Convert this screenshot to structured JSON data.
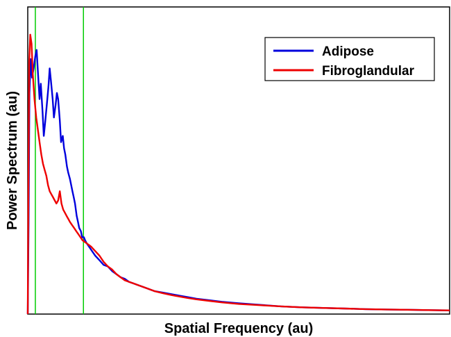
{
  "chart_data": {
    "type": "line",
    "title": "",
    "xlabel": "Spatial Frequency (au)",
    "ylabel": "Power Spectrum (au)",
    "xlim": [
      0,
      100
    ],
    "ylim": [
      0,
      100
    ],
    "x_ticks_shown": false,
    "y_ticks_shown": false,
    "grid": false,
    "legend": {
      "position": "top-right"
    },
    "vertical_lines": [
      {
        "x": 1.8,
        "color": "#00cc00"
      },
      {
        "x": 13.2,
        "color": "#00cc00"
      }
    ],
    "series": [
      {
        "name": "Adipose",
        "color": "#0000dd",
        "points": [
          [
            0.0,
            0
          ],
          [
            0.2,
            30
          ],
          [
            0.4,
            72
          ],
          [
            0.7,
            83
          ],
          [
            1.0,
            77
          ],
          [
            1.4,
            80
          ],
          [
            1.8,
            84
          ],
          [
            2.1,
            86
          ],
          [
            2.4,
            79
          ],
          [
            2.8,
            70
          ],
          [
            3.1,
            75
          ],
          [
            3.5,
            66
          ],
          [
            3.8,
            58
          ],
          [
            4.1,
            62
          ],
          [
            4.5,
            68
          ],
          [
            4.9,
            74
          ],
          [
            5.2,
            80
          ],
          [
            5.5,
            76
          ],
          [
            5.9,
            70
          ],
          [
            6.2,
            64
          ],
          [
            6.6,
            68
          ],
          [
            6.9,
            72
          ],
          [
            7.2,
            70
          ],
          [
            7.6,
            63
          ],
          [
            7.9,
            56
          ],
          [
            8.3,
            58
          ],
          [
            8.6,
            54
          ],
          [
            8.9,
            52
          ],
          [
            9.3,
            48
          ],
          [
            9.6,
            46
          ],
          [
            10.0,
            44
          ],
          [
            10.3,
            42
          ],
          [
            10.6,
            40
          ],
          [
            10.9,
            38
          ],
          [
            11.2,
            36
          ],
          [
            11.6,
            32
          ],
          [
            11.9,
            30
          ],
          [
            12.2,
            28
          ],
          [
            12.6,
            27
          ],
          [
            12.9,
            25
          ],
          [
            13.3,
            25
          ],
          [
            13.6,
            24
          ],
          [
            14.0,
            23
          ],
          [
            14.5,
            22
          ],
          [
            15.0,
            21
          ],
          [
            15.5,
            20
          ],
          [
            16.0,
            19
          ],
          [
            17.0,
            17.5
          ],
          [
            18.0,
            16
          ],
          [
            19.0,
            15.5
          ],
          [
            20.0,
            14
          ],
          [
            21.0,
            13
          ],
          [
            22.0,
            12
          ],
          [
            23.0,
            11.5
          ],
          [
            24.0,
            10.5
          ],
          [
            25.0,
            10
          ],
          [
            26.0,
            9.5
          ],
          [
            28.0,
            8.5
          ],
          [
            30.0,
            7.5
          ],
          [
            32.0,
            7
          ],
          [
            34.0,
            6.5
          ],
          [
            36.0,
            6
          ],
          [
            38.0,
            5.5
          ],
          [
            40.0,
            5
          ],
          [
            43.0,
            4.5
          ],
          [
            46.0,
            4
          ],
          [
            50.0,
            3.5
          ],
          [
            55.0,
            3
          ],
          [
            60.0,
            2.5
          ],
          [
            65.0,
            2.2
          ],
          [
            70.0,
            2
          ],
          [
            75.0,
            1.8
          ],
          [
            80.0,
            1.6
          ],
          [
            85.0,
            1.5
          ],
          [
            90.0,
            1.4
          ],
          [
            95.0,
            1.3
          ],
          [
            100.0,
            1.2
          ]
        ]
      },
      {
        "name": "Fibroglandular",
        "color": "#ee0000",
        "points": [
          [
            0.0,
            0
          ],
          [
            0.15,
            40
          ],
          [
            0.35,
            82
          ],
          [
            0.6,
            91
          ],
          [
            0.9,
            88
          ],
          [
            1.2,
            78
          ],
          [
            1.6,
            70
          ],
          [
            2.0,
            64
          ],
          [
            2.4,
            60
          ],
          [
            2.8,
            56
          ],
          [
            3.2,
            52
          ],
          [
            3.6,
            49
          ],
          [
            4.0,
            47
          ],
          [
            4.4,
            45
          ],
          [
            4.8,
            42
          ],
          [
            5.2,
            40
          ],
          [
            5.6,
            39
          ],
          [
            6.0,
            38
          ],
          [
            6.4,
            37
          ],
          [
            6.8,
            36
          ],
          [
            7.2,
            37
          ],
          [
            7.6,
            40
          ],
          [
            8.0,
            36
          ],
          [
            8.4,
            34
          ],
          [
            8.8,
            33
          ],
          [
            9.2,
            32
          ],
          [
            9.6,
            31
          ],
          [
            10.0,
            30
          ],
          [
            10.5,
            29
          ],
          [
            11.0,
            28
          ],
          [
            11.5,
            27
          ],
          [
            12.0,
            26
          ],
          [
            12.5,
            25
          ],
          [
            13.0,
            24
          ],
          [
            13.5,
            23.5
          ],
          [
            14.0,
            23
          ],
          [
            14.5,
            22.5
          ],
          [
            15.0,
            22
          ],
          [
            16.0,
            20.5
          ],
          [
            17.0,
            19
          ],
          [
            18.0,
            17
          ],
          [
            19.0,
            15.5
          ],
          [
            20.0,
            14.5
          ],
          [
            21.0,
            13
          ],
          [
            22.0,
            12
          ],
          [
            23.0,
            11
          ],
          [
            24.0,
            10.5
          ],
          [
            25.0,
            10
          ],
          [
            26.0,
            9.5
          ],
          [
            28.0,
            8.5
          ],
          [
            30.0,
            7.5
          ],
          [
            32.0,
            6.8
          ],
          [
            34.0,
            6.2
          ],
          [
            36.0,
            5.7
          ],
          [
            38.0,
            5.2
          ],
          [
            40.0,
            4.8
          ],
          [
            43.0,
            4.3
          ],
          [
            46.0,
            3.8
          ],
          [
            50.0,
            3.3
          ],
          [
            55.0,
            2.9
          ],
          [
            60.0,
            2.5
          ],
          [
            65.0,
            2.2
          ],
          [
            70.0,
            2
          ],
          [
            75.0,
            1.8
          ],
          [
            80.0,
            1.6
          ],
          [
            85.0,
            1.5
          ],
          [
            90.0,
            1.4
          ],
          [
            95.0,
            1.3
          ],
          [
            100.0,
            1.2
          ]
        ]
      }
    ]
  }
}
